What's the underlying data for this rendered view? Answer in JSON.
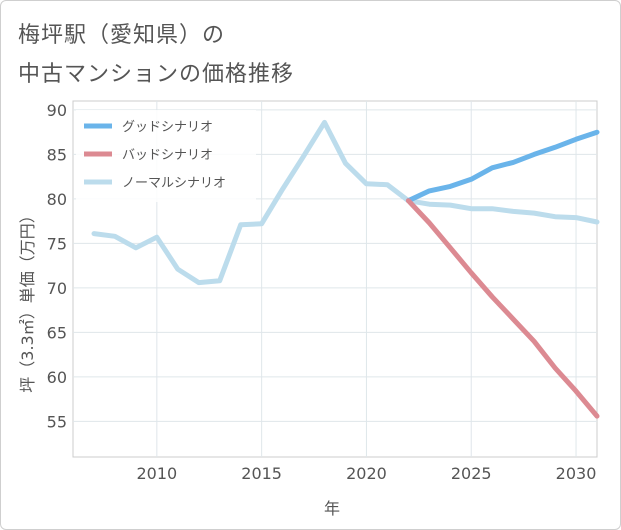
{
  "title_line1": "梅坪駅（愛知県）の",
  "title_line2": "中古マンションの価格推移",
  "chart_data": {
    "type": "line",
    "xlabel": "年",
    "ylabel": "坪（3.3㎡）単価（万円）",
    "xlim": [
      2006,
      2031
    ],
    "ylim": [
      51,
      91
    ],
    "xticks": [
      2010,
      2015,
      2020,
      2025,
      2030
    ],
    "yticks": [
      55,
      60,
      65,
      70,
      75,
      80,
      85,
      90
    ],
    "grid": true,
    "legend_position": "top-left",
    "series": [
      {
        "name": "グッドシナリオ",
        "color": "#6ab4ea",
        "points": [
          [
            2022,
            79.8
          ],
          [
            2023,
            80.9
          ],
          [
            2024,
            81.4
          ],
          [
            2025,
            82.2
          ],
          [
            2026,
            83.5
          ],
          [
            2027,
            84.1
          ],
          [
            2028,
            85.0
          ],
          [
            2029,
            85.8
          ],
          [
            2030,
            86.7
          ],
          [
            2031,
            87.5
          ]
        ]
      },
      {
        "name": "バッドシナリオ",
        "color": "#dc8a92",
        "points": [
          [
            2022,
            79.8
          ],
          [
            2023,
            77.3
          ],
          [
            2024,
            74.5
          ],
          [
            2025,
            71.7
          ],
          [
            2026,
            69.0
          ],
          [
            2027,
            66.5
          ],
          [
            2028,
            64.0
          ],
          [
            2029,
            61.0
          ],
          [
            2030,
            58.4
          ],
          [
            2031,
            55.6
          ]
        ]
      },
      {
        "name": "ノーマルシナリオ",
        "color": "#bcdcec",
        "points": [
          [
            2007,
            76.1
          ],
          [
            2008,
            75.8
          ],
          [
            2009,
            74.5
          ],
          [
            2010,
            75.7
          ],
          [
            2011,
            72.1
          ],
          [
            2012,
            70.6
          ],
          [
            2013,
            70.8
          ],
          [
            2014,
            77.1
          ],
          [
            2015,
            77.2
          ],
          [
            2016,
            81.1
          ],
          [
            2017,
            84.8
          ],
          [
            2018,
            88.6
          ],
          [
            2019,
            84.0
          ],
          [
            2020,
            81.7
          ],
          [
            2021,
            81.6
          ],
          [
            2022,
            79.8
          ],
          [
            2023,
            79.4
          ],
          [
            2024,
            79.3
          ],
          [
            2025,
            78.9
          ],
          [
            2026,
            78.9
          ],
          [
            2027,
            78.6
          ],
          [
            2028,
            78.4
          ],
          [
            2029,
            78.0
          ],
          [
            2030,
            77.9
          ],
          [
            2031,
            77.4
          ]
        ]
      }
    ]
  }
}
